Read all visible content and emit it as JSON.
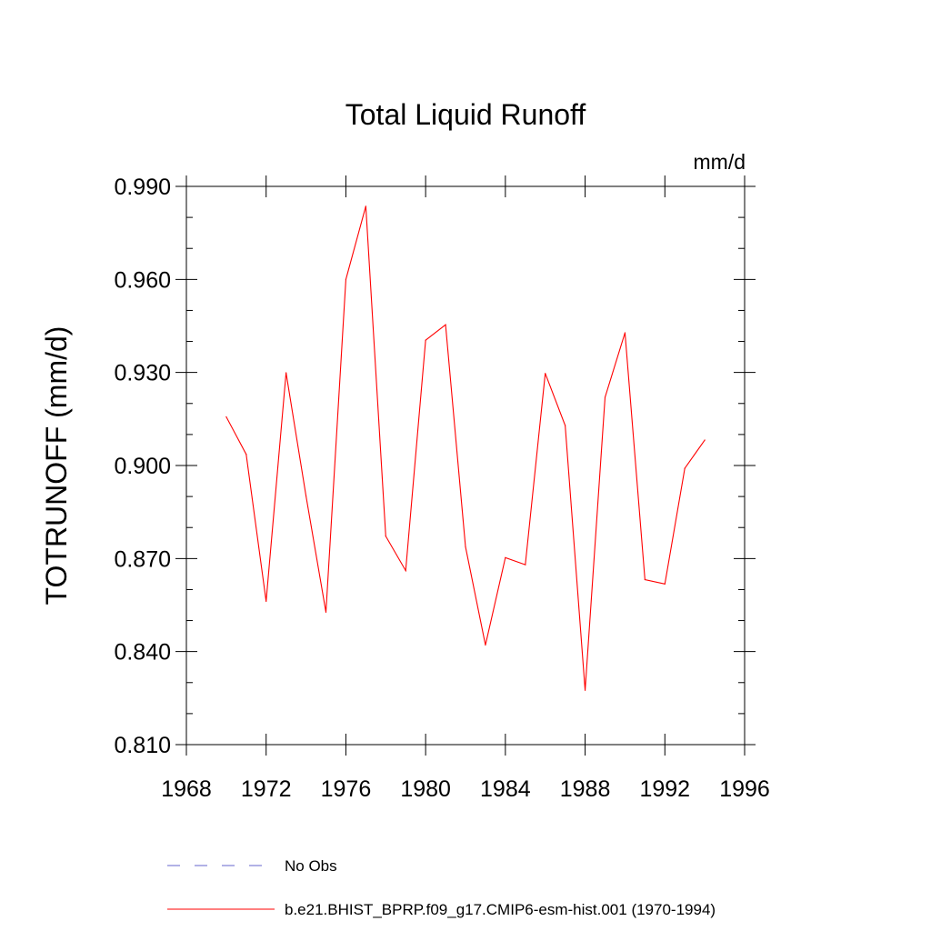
{
  "chart_data": {
    "type": "line",
    "title": "Total Liquid Runoff",
    "units_label": "mm/d",
    "ylabel": "TOTRUNOFF  (mm/d)",
    "xlabel": "",
    "xlim": [
      1968,
      1996
    ],
    "ylim": [
      0.81,
      0.99
    ],
    "x_ticks": [
      1968,
      1972,
      1976,
      1980,
      1984,
      1988,
      1992,
      1996
    ],
    "x_tick_labels": [
      "1968",
      "1972",
      "1976",
      "1980",
      "1984",
      "1988",
      "1992",
      "1996"
    ],
    "y_ticks": [
      0.81,
      0.84,
      0.87,
      0.9,
      0.93,
      0.96,
      0.99
    ],
    "y_tick_labels": [
      "0.810",
      "0.840",
      "0.870",
      "0.900",
      "0.930",
      "0.960",
      "0.990"
    ],
    "grid": false,
    "legend_position": "bottom",
    "series": [
      {
        "name": "b.e21.BHIST_BPRP.f09_g17.CMIP6-esm-hist.001 (1970-1994)",
        "color": "#ff0000",
        "style": "solid",
        "x": [
          1970,
          1971,
          1972,
          1973,
          1974,
          1975,
          1976,
          1977,
          1978,
          1979,
          1980,
          1981,
          1982,
          1983,
          1984,
          1985,
          1986,
          1987,
          1988,
          1989,
          1990,
          1991,
          1992,
          1993,
          1994
        ],
        "y": [
          0.9157,
          0.9036,
          0.8562,
          0.9299,
          0.8902,
          0.8527,
          0.96,
          0.9836,
          0.8772,
          0.8661,
          0.9404,
          0.9454,
          0.8738,
          0.8421,
          0.8703,
          0.868,
          0.9297,
          0.9129,
          0.8275,
          0.922,
          0.9428,
          0.8632,
          0.8618,
          0.8991,
          0.9082
        ]
      }
    ],
    "legend": [
      {
        "label": "No Obs",
        "color": "#6666cc",
        "style": "dashed"
      },
      {
        "label": "b.e21.BHIST_BPRP.f09_g17.CMIP6-esm-hist.001 (1970-1994)",
        "color": "#ff0000",
        "style": "solid"
      }
    ]
  }
}
